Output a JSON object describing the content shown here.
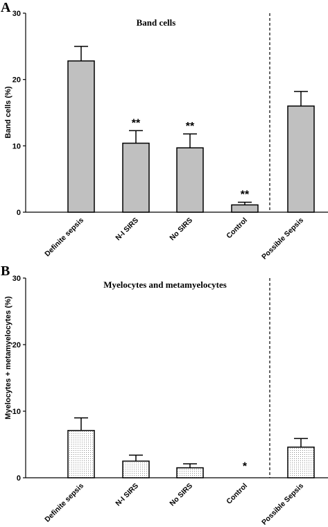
{
  "chart_data": [
    {
      "panel": "A",
      "type": "bar",
      "title": "Band cells",
      "ylabel": "Band cells (%)",
      "xlabel": "",
      "ylim": [
        0,
        30
      ],
      "yticks": [
        0,
        10,
        20,
        30
      ],
      "categories": [
        "Definite sepsis",
        "N-I SIRS",
        "No SIRS",
        "Control",
        "Possible Sepsis"
      ],
      "values": [
        22.8,
        10.4,
        9.7,
        1.1,
        16.0
      ],
      "errors": [
        2.2,
        1.9,
        2.1,
        0.4,
        2.2
      ],
      "significance": [
        "",
        "**",
        "**",
        "**",
        ""
      ],
      "bar_fill": "#c0c0c0",
      "pattern": "solid",
      "separator_before_index": 4
    },
    {
      "panel": "B",
      "type": "bar",
      "title": "Myelocytes and metamyelocytes",
      "ylabel": "Myelocytes + metamyelocytes  (%)",
      "xlabel": "",
      "ylim": [
        0,
        30
      ],
      "yticks": [
        0,
        10,
        20,
        30
      ],
      "categories": [
        "Definite sepsis",
        "N-I SIRS",
        "No SIRS",
        "Control",
        "Possible Sepsis"
      ],
      "values": [
        7.1,
        2.5,
        1.5,
        0,
        4.6
      ],
      "errors": [
        1.9,
        0.9,
        0.6,
        0,
        1.3
      ],
      "significance": [
        "",
        "",
        "",
        "*",
        ""
      ],
      "bar_fill": "#ffffff",
      "pattern": "dotted",
      "separator_before_index": 4
    }
  ]
}
